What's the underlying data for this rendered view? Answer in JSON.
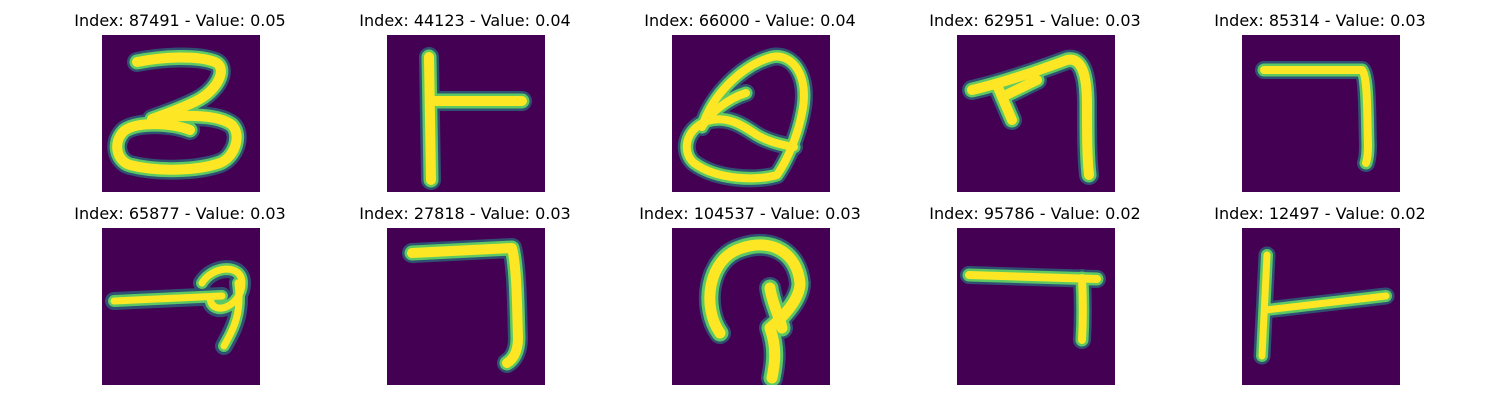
{
  "colors": {
    "background": "#440154",
    "stroke_core": "#fde725",
    "stroke_edge": "#35b779",
    "stroke_glow": "#21918c"
  },
  "panels": [
    {
      "label": "Index: 87491 - Value: 0.05",
      "glyph": "digit-three-shape"
    },
    {
      "label": "Index: 44123 - Value: 0.04",
      "glyph": "t-rotated-shape"
    },
    {
      "label": "Index: 66000 - Value: 0.04",
      "glyph": "loop-q-shape"
    },
    {
      "label": "Index: 62951 - Value: 0.03",
      "glyph": "curved-arrow-shape"
    },
    {
      "label": "Index: 85314 - Value: 0.03",
      "glyph": "seven-bar-shape"
    },
    {
      "label": "Index: 65877 - Value: 0.03",
      "glyph": "loop-nine-shape"
    },
    {
      "label": "Index: 27818 - Value: 0.03",
      "glyph": "seven-bar-shape"
    },
    {
      "label": "Index: 104537 - Value: 0.03",
      "glyph": "hook-shape"
    },
    {
      "label": "Index: 95786 - Value: 0.02",
      "glyph": "seven-short-shape"
    },
    {
      "label": "Index: 12497 - Value: 0.02",
      "glyph": "t-rotated-shape"
    }
  ]
}
